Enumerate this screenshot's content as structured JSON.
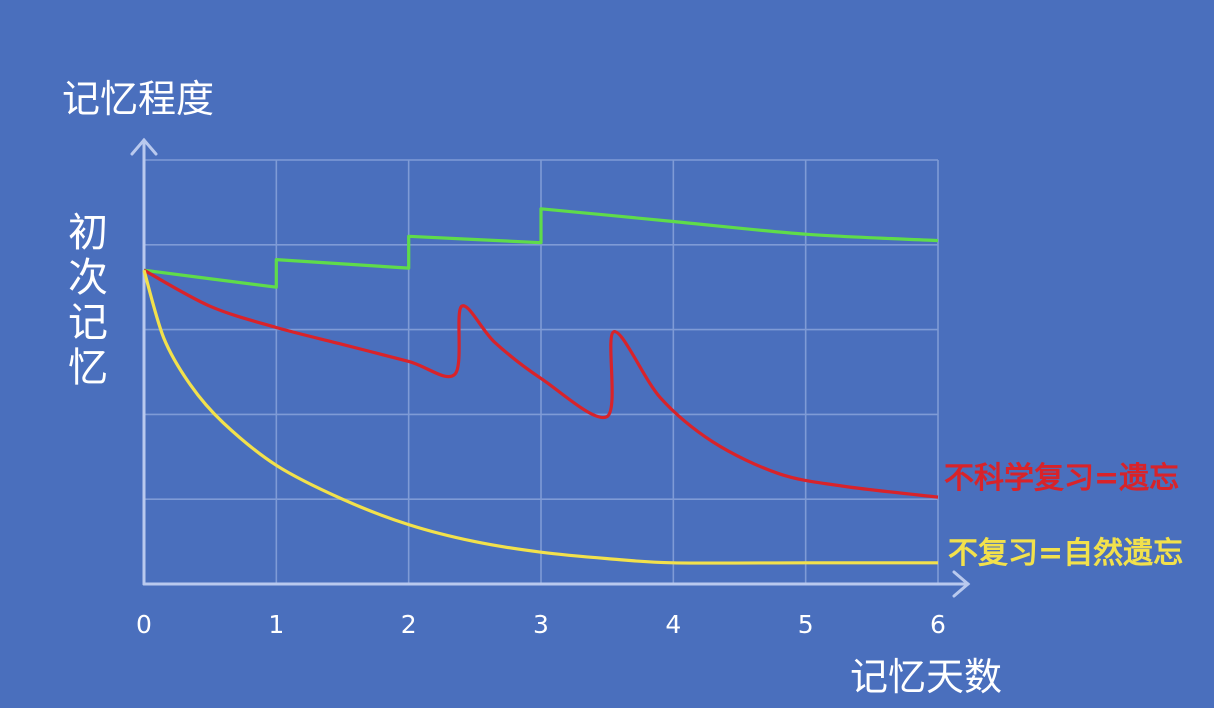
{
  "chart_data": {
    "type": "line",
    "title": "",
    "ylabel": "记忆程度",
    "ylabel_side": "初次记忆",
    "xlabel": "记忆天数",
    "xticks": [
      "0",
      "1",
      "2",
      "3",
      "4",
      "5",
      "6"
    ],
    "xlim": [
      0,
      6
    ],
    "ylim": [
      0,
      100
    ],
    "grid": true,
    "series": [
      {
        "name": "",
        "color": "#5fdc4a",
        "x": [
          0,
          1,
          1,
          2,
          2,
          3,
          3,
          4,
          5,
          6
        ],
        "y": [
          74,
          70,
          76.5,
          74.5,
          82,
          80.5,
          88.5,
          85.5,
          82.5,
          81
        ]
      },
      {
        "name": "不科学复习=遗忘",
        "color": "#d8232a",
        "x": [
          0,
          0.5,
          1,
          1.5,
          2,
          2.35,
          2.4,
          2.65,
          3,
          3.5,
          3.55,
          3.9,
          4.3,
          4.8,
          5.3,
          6
        ],
        "y": [
          74,
          65.5,
          60.5,
          56.5,
          52.5,
          49.5,
          65.5,
          57,
          48.5,
          39.5,
          59.5,
          44,
          33.5,
          26,
          23,
          20.5
        ]
      },
      {
        "name": "不复习=自然遗忘",
        "color": "#f2e14c",
        "x": [
          0,
          0.15,
          0.35,
          0.6,
          1,
          1.5,
          2,
          2.5,
          3,
          3.5,
          4,
          5,
          6
        ],
        "y": [
          74,
          58,
          47,
          38,
          28,
          20,
          14,
          10,
          7.5,
          6,
          5,
          5,
          5
        ]
      }
    ]
  }
}
